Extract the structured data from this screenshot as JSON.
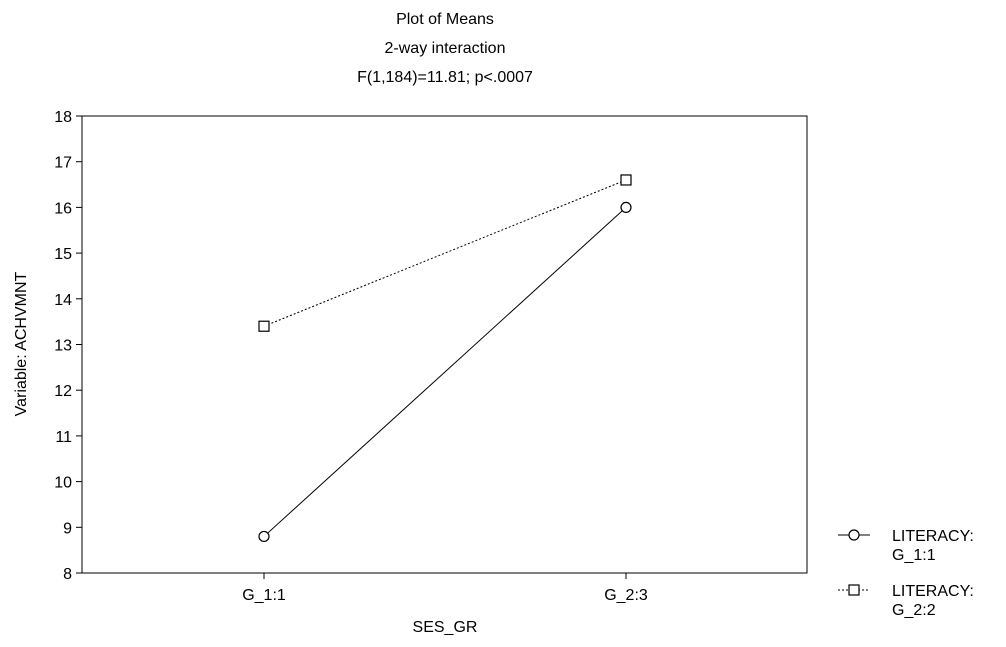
{
  "chart_data": {
    "type": "line",
    "title_lines": [
      "Plot of Means",
      "2-way interaction",
      "F(1,184)=11.81; p<.0007"
    ],
    "xlabel": "SES_GR",
    "ylabel": "Variable: ACHVMNT",
    "categories": [
      "G_1:1",
      "G_2:3"
    ],
    "ylim": [
      8,
      18
    ],
    "yticks": [
      8,
      9,
      10,
      11,
      12,
      13,
      14,
      15,
      16,
      17,
      18
    ],
    "grid": false,
    "legend_position": "right-bottom",
    "series": [
      {
        "name": "LITERACY: G_1:1",
        "name_lines": [
          "LITERACY:",
          "G_1:1"
        ],
        "values": [
          8.8,
          16.0
        ],
        "marker": "circle",
        "line_style": "solid"
      },
      {
        "name": "LITERACY: G_2:2",
        "name_lines": [
          "LITERACY:",
          "G_2:2"
        ],
        "values": [
          13.4,
          16.6
        ],
        "marker": "square",
        "line_style": "dotted"
      }
    ]
  }
}
